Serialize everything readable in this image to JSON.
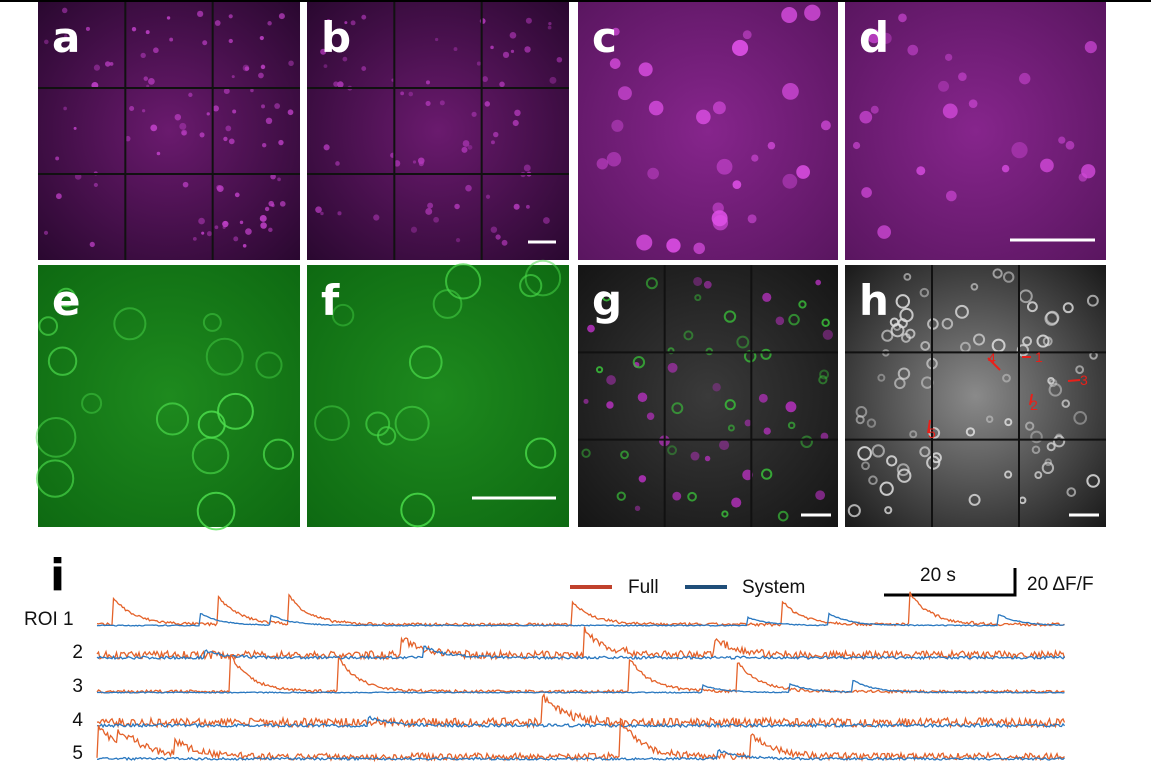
{
  "panels": [
    {
      "label": "a"
    },
    {
      "label": "b"
    },
    {
      "label": "c"
    },
    {
      "label": "d"
    },
    {
      "label": "e"
    },
    {
      "label": "f"
    },
    {
      "label": "g"
    },
    {
      "label": "h"
    }
  ],
  "panel_h_markers": [
    "1",
    "2",
    "3",
    "4",
    "5"
  ],
  "panel_i": {
    "label": "i",
    "legend": [
      "Full",
      "System"
    ],
    "scale_time": "20 s",
    "scale_amplitude": "20 ΔF/F",
    "rows": [
      "ROI 1",
      "2",
      "3",
      "4",
      "5"
    ]
  }
}
